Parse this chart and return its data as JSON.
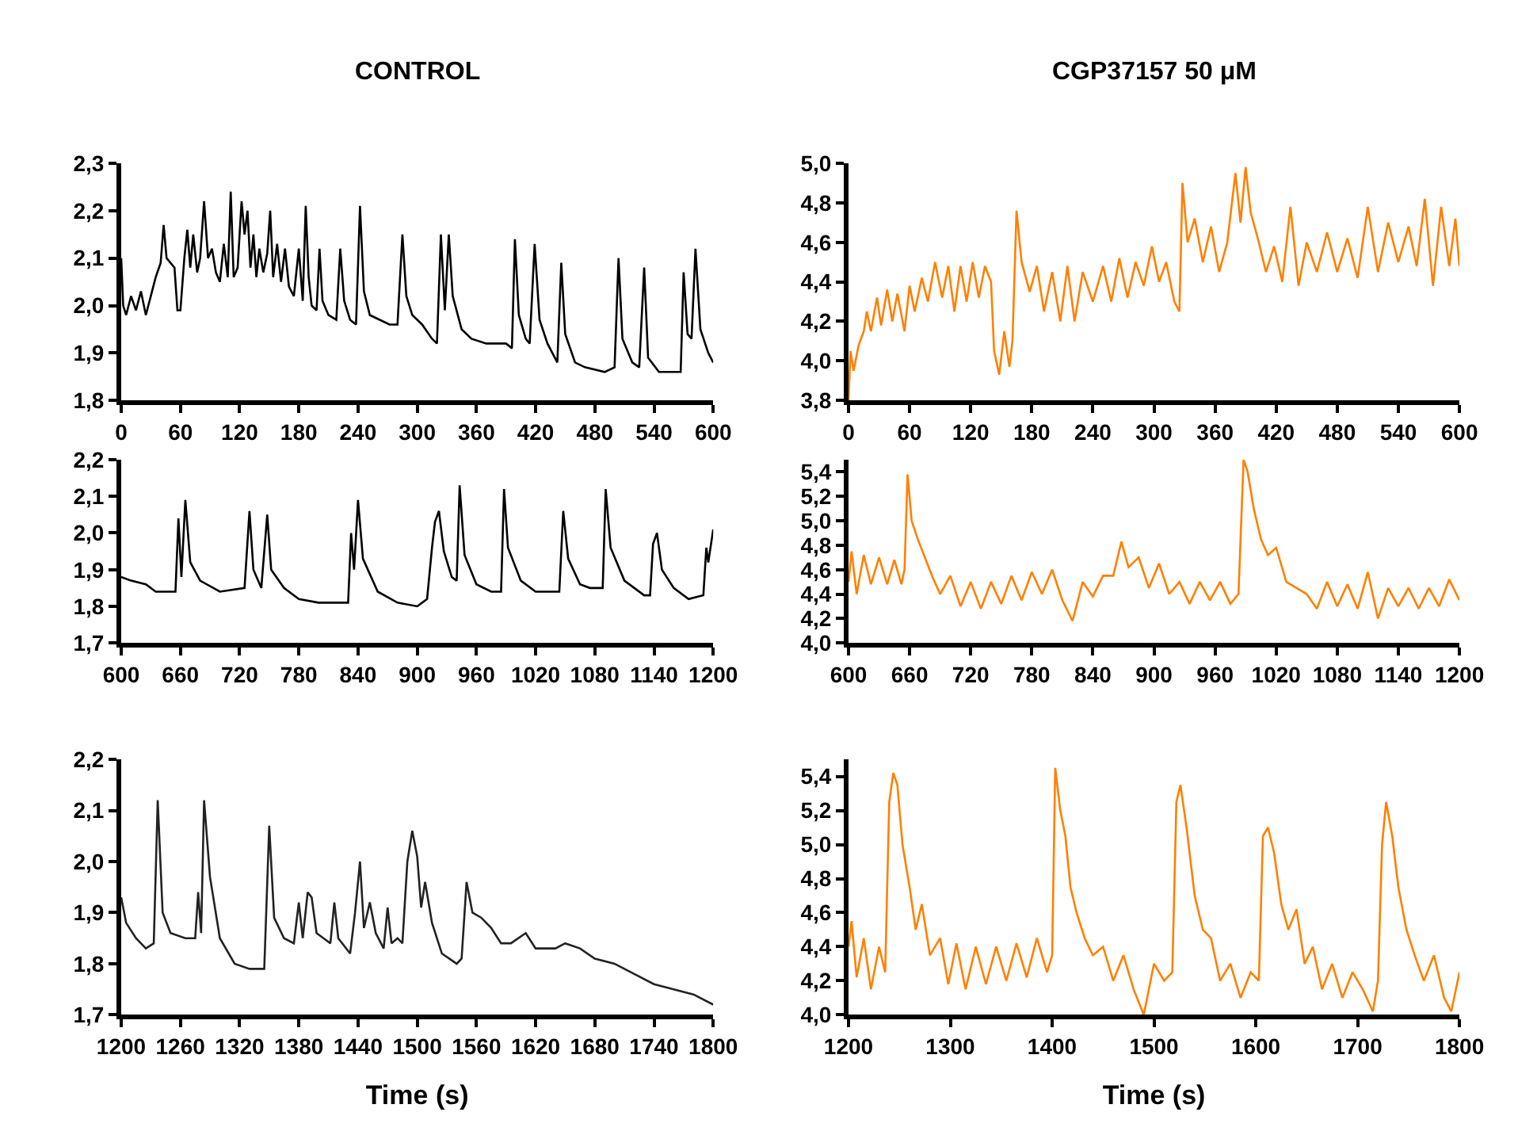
{
  "chart_data": [
    {
      "type": "line",
      "title": "CONTROL",
      "xlim": [
        0,
        600
      ],
      "ylim": [
        1.8,
        2.3
      ],
      "xticks": [
        0,
        60,
        120,
        180,
        240,
        300,
        360,
        420,
        480,
        540,
        600
      ],
      "yticks": [
        {
          "value": 1.8,
          "label": "1,8"
        },
        {
          "value": 1.9,
          "label": "1,9"
        },
        {
          "value": 2.0,
          "label": "2,0"
        },
        {
          "value": 2.1,
          "label": "2,1"
        },
        {
          "value": 2.2,
          "label": "2,2"
        },
        {
          "value": 2.3,
          "label": "2,3"
        }
      ],
      "x": [
        0,
        2,
        5,
        10,
        15,
        20,
        25,
        30,
        35,
        40,
        43,
        46,
        50,
        54,
        57,
        60,
        64,
        67,
        70,
        73,
        77,
        80,
        84,
        88,
        92,
        96,
        100,
        104,
        108,
        111,
        114,
        118,
        122,
        125,
        128,
        131,
        134,
        137,
        140,
        144,
        148,
        151,
        154,
        158,
        162,
        166,
        170,
        175,
        180,
        184,
        187,
        190,
        193,
        198,
        201,
        204,
        210,
        218,
        222,
        226,
        232,
        238,
        242,
        246,
        252,
        262,
        272,
        280,
        285,
        289,
        295,
        305,
        315,
        320,
        324,
        328,
        332,
        336,
        345,
        355,
        370,
        390,
        396,
        399,
        403,
        410,
        414,
        419,
        424,
        432,
        442,
        446,
        450,
        460,
        470,
        490,
        500,
        504,
        508,
        518,
        525,
        530,
        534,
        545,
        567,
        570,
        574,
        578,
        582,
        587,
        595,
        600
      ],
      "series": [
        {
          "color": "#000000",
          "values": [
            2.1,
            2.0,
            1.98,
            2.02,
            1.99,
            2.03,
            1.98,
            2.02,
            2.06,
            2.09,
            2.17,
            2.1,
            2.09,
            2.08,
            1.99,
            1.99,
            2.1,
            2.16,
            2.08,
            2.15,
            2.07,
            2.1,
            2.22,
            2.1,
            2.12,
            2.07,
            2.05,
            2.13,
            2.06,
            2.24,
            2.06,
            2.08,
            2.22,
            2.15,
            2.2,
            2.08,
            2.15,
            2.06,
            2.12,
            2.07,
            2.11,
            2.2,
            2.06,
            2.13,
            2.05,
            2.12,
            2.04,
            2.02,
            2.12,
            2.01,
            2.21,
            2.06,
            2.0,
            1.99,
            2.12,
            2.01,
            1.98,
            1.97,
            2.12,
            2.01,
            1.97,
            1.96,
            2.21,
            2.03,
            1.98,
            1.97,
            1.96,
            1.96,
            2.15,
            2.02,
            1.98,
            1.96,
            1.93,
            1.92,
            2.15,
            1.99,
            2.15,
            2.02,
            1.95,
            1.93,
            1.92,
            1.92,
            1.91,
            2.14,
            1.98,
            1.93,
            1.92,
            2.13,
            1.97,
            1.92,
            1.88,
            2.09,
            1.94,
            1.88,
            1.87,
            1.86,
            1.87,
            2.1,
            1.93,
            1.88,
            1.87,
            2.08,
            1.89,
            1.86,
            1.86,
            2.07,
            1.94,
            1.93,
            2.12,
            1.95,
            1.9,
            1.88
          ]
        }
      ]
    },
    {
      "type": "line",
      "title": "CGP37157 50 μM",
      "xlim": [
        0,
        600
      ],
      "ylim": [
        3.8,
        5.0
      ],
      "xticks": [
        0,
        60,
        120,
        180,
        240,
        300,
        360,
        420,
        480,
        540,
        600
      ],
      "yticks": [
        {
          "value": 3.8,
          "label": "3,8"
        },
        {
          "value": 4.0,
          "label": "4,0"
        },
        {
          "value": 4.2,
          "label": "4,2"
        },
        {
          "value": 4.4,
          "label": "4,4"
        },
        {
          "value": 4.6,
          "label": "4,6"
        },
        {
          "value": 4.8,
          "label": "4,8"
        },
        {
          "value": 5.0,
          "label": "5,0"
        }
      ],
      "x": [
        0,
        2,
        5,
        10,
        15,
        18,
        22,
        28,
        32,
        38,
        43,
        48,
        55,
        60,
        65,
        72,
        78,
        85,
        92,
        98,
        104,
        110,
        116,
        122,
        128,
        134,
        140,
        143,
        148,
        153,
        158,
        161,
        165,
        170,
        178,
        185,
        192,
        200,
        208,
        215,
        222,
        230,
        240,
        250,
        258,
        266,
        274,
        282,
        290,
        298,
        305,
        312,
        320,
        325,
        328,
        333,
        340,
        348,
        356,
        364,
        372,
        380,
        385,
        390,
        395,
        402,
        410,
        418,
        426,
        434,
        442,
        450,
        460,
        470,
        480,
        490,
        500,
        510,
        520,
        530,
        540,
        550,
        558,
        566,
        574,
        582,
        590,
        596,
        600
      ],
      "series": [
        {
          "color": "#ff8000",
          "values": [
            3.8,
            4.05,
            3.95,
            4.08,
            4.15,
            4.25,
            4.15,
            4.32,
            4.18,
            4.36,
            4.2,
            4.34,
            4.15,
            4.38,
            4.25,
            4.42,
            4.3,
            4.5,
            4.32,
            4.48,
            4.25,
            4.48,
            4.3,
            4.5,
            4.32,
            4.48,
            4.4,
            4.05,
            3.93,
            4.15,
            3.97,
            4.1,
            4.76,
            4.5,
            4.35,
            4.48,
            4.25,
            4.45,
            4.2,
            4.48,
            4.2,
            4.45,
            4.3,
            4.48,
            4.3,
            4.52,
            4.32,
            4.5,
            4.38,
            4.58,
            4.4,
            4.5,
            4.3,
            4.25,
            4.9,
            4.6,
            4.72,
            4.5,
            4.68,
            4.45,
            4.6,
            4.95,
            4.7,
            4.98,
            4.75,
            4.62,
            4.45,
            4.58,
            4.4,
            4.78,
            4.38,
            4.6,
            4.45,
            4.65,
            4.45,
            4.62,
            4.42,
            4.78,
            4.45,
            4.7,
            4.5,
            4.68,
            4.48,
            4.82,
            4.38,
            4.78,
            4.48,
            4.72,
            4.48
          ]
        }
      ]
    },
    {
      "type": "line",
      "xlim": [
        600,
        1200
      ],
      "ylim": [
        1.7,
        2.2
      ],
      "xticks": [
        600,
        660,
        720,
        780,
        840,
        900,
        960,
        1020,
        1080,
        1140,
        1200
      ],
      "yticks": [
        {
          "value": 1.7,
          "label": "1,7"
        },
        {
          "value": 1.8,
          "label": "1,8"
        },
        {
          "value": 1.9,
          "label": "1,9"
        },
        {
          "value": 2.0,
          "label": "2,0"
        },
        {
          "value": 2.1,
          "label": "2,1"
        },
        {
          "value": 2.2,
          "label": "2,2"
        }
      ],
      "x": [
        600,
        610,
        625,
        635,
        655,
        658,
        661,
        665,
        670,
        680,
        700,
        725,
        730,
        734,
        742,
        748,
        752,
        765,
        780,
        800,
        830,
        833,
        836,
        840,
        845,
        860,
        880,
        900,
        910,
        915,
        918,
        922,
        927,
        935,
        940,
        943,
        948,
        960,
        975,
        985,
        988,
        992,
        1005,
        1020,
        1044,
        1048,
        1053,
        1065,
        1075,
        1088,
        1091,
        1096,
        1110,
        1130,
        1136,
        1139,
        1143,
        1148,
        1160,
        1175,
        1190,
        1193,
        1195,
        1200
      ],
      "series": [
        {
          "color": "#000000",
          "values": [
            1.88,
            1.87,
            1.86,
            1.84,
            1.84,
            2.04,
            1.88,
            2.09,
            1.92,
            1.87,
            1.84,
            1.85,
            2.06,
            1.9,
            1.85,
            2.05,
            1.9,
            1.85,
            1.82,
            1.81,
            1.81,
            2.0,
            1.9,
            2.09,
            1.93,
            1.84,
            1.81,
            1.8,
            1.82,
            1.96,
            2.03,
            2.06,
            1.95,
            1.88,
            1.87,
            2.13,
            1.94,
            1.86,
            1.84,
            1.84,
            2.12,
            1.96,
            1.87,
            1.84,
            1.84,
            2.06,
            1.93,
            1.86,
            1.85,
            1.85,
            2.12,
            1.96,
            1.87,
            1.83,
            1.83,
            1.97,
            2.0,
            1.9,
            1.85,
            1.82,
            1.83,
            1.96,
            1.92,
            2.01
          ]
        }
      ]
    },
    {
      "type": "line",
      "xlim": [
        600,
        1200
      ],
      "ylim": [
        4.0,
        5.5
      ],
      "xticks": [
        600,
        660,
        720,
        780,
        840,
        900,
        960,
        1020,
        1080,
        1140,
        1200
      ],
      "yticks": [
        {
          "value": 4.0,
          "label": "4,0"
        },
        {
          "value": 4.2,
          "label": "4,2"
        },
        {
          "value": 4.4,
          "label": "4,4"
        },
        {
          "value": 4.6,
          "label": "4,6"
        },
        {
          "value": 4.8,
          "label": "4,8"
        },
        {
          "value": 5.0,
          "label": "5,0"
        },
        {
          "value": 5.2,
          "label": "5,2"
        },
        {
          "value": 5.4,
          "label": "5,4"
        }
      ],
      "x": [
        600,
        603,
        608,
        615,
        622,
        630,
        638,
        645,
        652,
        655,
        658,
        662,
        668,
        675,
        682,
        690,
        700,
        710,
        720,
        730,
        740,
        750,
        760,
        770,
        780,
        790,
        800,
        810,
        820,
        830,
        840,
        850,
        860,
        868,
        875,
        885,
        895,
        905,
        915,
        925,
        935,
        945,
        955,
        965,
        975,
        983,
        988,
        992,
        998,
        1005,
        1012,
        1020,
        1030,
        1040,
        1050,
        1060,
        1070,
        1080,
        1090,
        1100,
        1110,
        1120,
        1130,
        1140,
        1150,
        1160,
        1170,
        1180,
        1190,
        1200
      ],
      "series": [
        {
          "color": "#ff8000",
          "values": [
            4.5,
            4.75,
            4.4,
            4.72,
            4.48,
            4.7,
            4.48,
            4.68,
            4.48,
            4.6,
            5.38,
            5.0,
            4.85,
            4.7,
            4.55,
            4.4,
            4.55,
            4.3,
            4.5,
            4.28,
            4.5,
            4.32,
            4.55,
            4.35,
            4.58,
            4.4,
            4.6,
            4.35,
            4.18,
            4.5,
            4.38,
            4.55,
            4.55,
            4.83,
            4.62,
            4.7,
            4.45,
            4.65,
            4.4,
            4.5,
            4.32,
            4.5,
            4.35,
            4.5,
            4.32,
            4.4,
            5.5,
            5.4,
            5.1,
            4.85,
            4.72,
            4.78,
            4.5,
            4.45,
            4.4,
            4.28,
            4.5,
            4.3,
            4.48,
            4.28,
            4.58,
            4.2,
            4.45,
            4.3,
            4.45,
            4.28,
            4.45,
            4.3,
            4.52,
            4.35
          ]
        }
      ]
    },
    {
      "type": "line",
      "xlabel": "Time (s)",
      "xlim": [
        1200,
        1800
      ],
      "ylim": [
        1.7,
        2.2
      ],
      "xticks": [
        1200,
        1260,
        1320,
        1380,
        1440,
        1500,
        1560,
        1620,
        1680,
        1740,
        1800
      ],
      "yticks": [
        {
          "value": 1.7,
          "label": "1,7"
        },
        {
          "value": 1.8,
          "label": "1,8"
        },
        {
          "value": 1.9,
          "label": "1,9"
        },
        {
          "value": 2.0,
          "label": "2,0"
        },
        {
          "value": 2.1,
          "label": "2,1"
        },
        {
          "value": 2.2,
          "label": "2,2"
        }
      ],
      "x": [
        1200,
        1205,
        1215,
        1225,
        1233,
        1237,
        1242,
        1250,
        1265,
        1275,
        1278,
        1281,
        1284,
        1290,
        1300,
        1315,
        1330,
        1345,
        1350,
        1355,
        1365,
        1375,
        1380,
        1384,
        1389,
        1393,
        1398,
        1405,
        1412,
        1416,
        1420,
        1432,
        1437,
        1442,
        1446,
        1452,
        1458,
        1466,
        1470,
        1474,
        1480,
        1485,
        1490,
        1495,
        1500,
        1504,
        1508,
        1515,
        1525,
        1540,
        1545,
        1550,
        1556,
        1565,
        1575,
        1585,
        1595,
        1610,
        1620,
        1640,
        1650,
        1665,
        1680,
        1700,
        1720,
        1740,
        1760,
        1780,
        1800
      ],
      "series": [
        {
          "color": "#222222",
          "values": [
            1.93,
            1.88,
            1.85,
            1.83,
            1.84,
            2.12,
            1.9,
            1.86,
            1.85,
            1.85,
            1.94,
            1.86,
            2.12,
            1.97,
            1.85,
            1.8,
            1.79,
            1.79,
            2.07,
            1.89,
            1.85,
            1.84,
            1.92,
            1.85,
            1.94,
            1.93,
            1.86,
            1.85,
            1.84,
            1.92,
            1.85,
            1.82,
            1.9,
            2.0,
            1.87,
            1.92,
            1.86,
            1.83,
            1.91,
            1.84,
            1.85,
            1.84,
            2.0,
            2.06,
            2.01,
            1.91,
            1.96,
            1.88,
            1.82,
            1.8,
            1.81,
            1.96,
            1.9,
            1.89,
            1.87,
            1.84,
            1.84,
            1.86,
            1.83,
            1.83,
            1.84,
            1.83,
            1.81,
            1.8,
            1.78,
            1.76,
            1.75,
            1.74,
            1.72
          ]
        }
      ]
    },
    {
      "type": "line",
      "xlabel": "Time (s)",
      "xlim": [
        1200,
        1800
      ],
      "ylim": [
        4.0,
        5.5
      ],
      "xticks": [
        1200,
        1300,
        1400,
        1500,
        1600,
        1700,
        1800
      ],
      "yticks": [
        {
          "value": 4.0,
          "label": "4,0"
        },
        {
          "value": 4.2,
          "label": "4,2"
        },
        {
          "value": 4.4,
          "label": "4,4"
        },
        {
          "value": 4.6,
          "label": "4,6"
        },
        {
          "value": 4.8,
          "label": "4,8"
        },
        {
          "value": 5.0,
          "label": "5,0"
        },
        {
          "value": 5.2,
          "label": "5,2"
        },
        {
          "value": 5.4,
          "label": "5,4"
        }
      ],
      "x": [
        1200,
        1203,
        1208,
        1215,
        1222,
        1230,
        1236,
        1240,
        1244,
        1248,
        1253,
        1260,
        1266,
        1272,
        1280,
        1290,
        1298,
        1306,
        1315,
        1325,
        1335,
        1345,
        1355,
        1365,
        1375,
        1385,
        1395,
        1400,
        1403,
        1408,
        1413,
        1418,
        1424,
        1432,
        1440,
        1450,
        1460,
        1470,
        1480,
        1490,
        1500,
        1510,
        1518,
        1522,
        1526,
        1532,
        1540,
        1548,
        1556,
        1565,
        1575,
        1585,
        1595,
        1603,
        1607,
        1612,
        1618,
        1625,
        1632,
        1640,
        1648,
        1656,
        1665,
        1675,
        1685,
        1695,
        1705,
        1715,
        1720,
        1724,
        1728,
        1734,
        1740,
        1748,
        1756,
        1765,
        1775,
        1785,
        1792,
        1800
      ],
      "series": [
        {
          "color": "#ff8000",
          "values": [
            4.4,
            4.55,
            4.22,
            4.45,
            4.15,
            4.4,
            4.25,
            5.25,
            5.42,
            5.35,
            5.0,
            4.75,
            4.5,
            4.65,
            4.35,
            4.45,
            4.18,
            4.42,
            4.15,
            4.4,
            4.18,
            4.4,
            4.2,
            4.42,
            4.22,
            4.45,
            4.25,
            4.35,
            5.45,
            5.2,
            5.05,
            4.75,
            4.6,
            4.45,
            4.35,
            4.4,
            4.2,
            4.35,
            4.15,
            4.0,
            4.3,
            4.2,
            4.25,
            5.25,
            5.35,
            5.1,
            4.7,
            4.5,
            4.45,
            4.2,
            4.3,
            4.1,
            4.25,
            4.2,
            5.05,
            5.1,
            4.95,
            4.65,
            4.5,
            4.62,
            4.3,
            4.4,
            4.15,
            4.3,
            4.1,
            4.25,
            4.15,
            4.02,
            4.2,
            5.0,
            5.25,
            5.05,
            4.75,
            4.5,
            4.35,
            4.2,
            4.35,
            4.1,
            4.02,
            4.25
          ]
        }
      ]
    }
  ]
}
